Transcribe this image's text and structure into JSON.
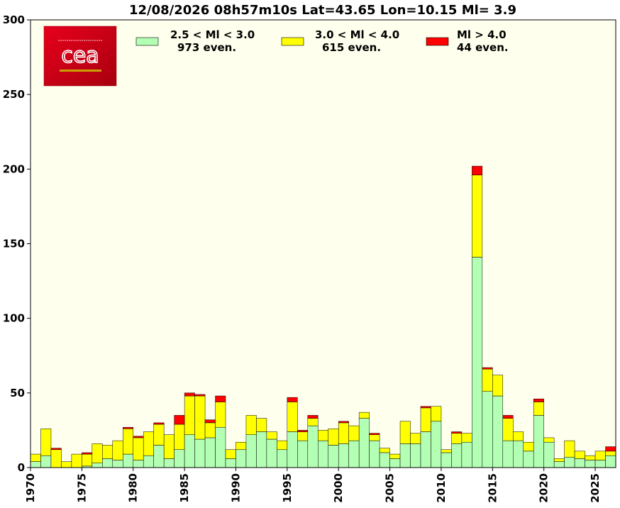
{
  "chart_data": {
    "type": "bar",
    "stacked": true,
    "title": "12/08/2026 08h57m10s Lat=43.65 Lon=10.15 Ml= 3.9",
    "xlabel": "",
    "ylabel": "",
    "ylim": [
      0,
      300
    ],
    "xlim": [
      1970,
      2027
    ],
    "yticks": [
      0,
      50,
      100,
      150,
      200,
      250,
      300
    ],
    "xticks": [
      1970,
      1975,
      1980,
      1985,
      1990,
      1995,
      2000,
      2005,
      2010,
      2015,
      2020,
      2025
    ],
    "x": [
      1970,
      1971,
      1972,
      1973,
      1974,
      1975,
      1976,
      1977,
      1978,
      1979,
      1980,
      1981,
      1982,
      1983,
      1984,
      1985,
      1986,
      1987,
      1988,
      1989,
      1990,
      1991,
      1992,
      1993,
      1994,
      1995,
      1996,
      1997,
      1998,
      1999,
      2000,
      2001,
      2002,
      2003,
      2004,
      2005,
      2006,
      2007,
      2008,
      2009,
      2010,
      2011,
      2012,
      2013,
      2014,
      2015,
      2016,
      2017,
      2018,
      2019,
      2020,
      2021,
      2022,
      2023,
      2024,
      2025,
      2026
    ],
    "series": [
      {
        "name": "2.5 < Ml <  3.0",
        "count_label": "973 even.",
        "color": "#b3ffb3",
        "values": [
          4,
          8,
          0,
          0,
          0,
          1,
          3,
          6,
          5,
          9,
          5,
          8,
          15,
          6,
          12,
          22,
          19,
          20,
          27,
          6,
          12,
          22,
          24,
          19,
          12,
          24,
          18,
          28,
          18,
          15,
          16,
          18,
          33,
          18,
          10,
          6,
          16,
          16,
          24,
          31,
          10,
          16,
          17,
          141,
          51,
          48,
          18,
          18,
          11,
          35,
          17,
          4,
          7,
          6,
          5,
          5,
          8
        ]
      },
      {
        "name": "3.0 < Ml <  4.0",
        "count_label": "615 even.",
        "color": "#ffff00",
        "values": [
          5,
          18,
          12,
          4,
          9,
          8,
          13,
          9,
          13,
          17,
          15,
          16,
          14,
          16,
          17,
          26,
          29,
          10,
          17,
          6,
          5,
          13,
          9,
          5,
          6,
          20,
          6,
          5,
          7,
          11,
          14,
          10,
          4,
          4,
          3,
          3,
          15,
          7,
          16,
          10,
          2,
          7,
          6,
          55,
          15,
          14,
          15,
          6,
          6,
          9,
          3,
          2,
          11,
          5,
          3,
          6,
          3
        ]
      },
      {
        "name": "Ml >  4.0",
        "count_label": "44 even.",
        "color": "#ff0000",
        "values": [
          0,
          0,
          1,
          0,
          0,
          1,
          0,
          0,
          0,
          1,
          1,
          0,
          1,
          0,
          6,
          2,
          1,
          2,
          4,
          0,
          0,
          0,
          0,
          0,
          0,
          3,
          1,
          2,
          0,
          0,
          1,
          0,
          0,
          1,
          0,
          0,
          0,
          0,
          1,
          0,
          0,
          1,
          0,
          6,
          1,
          0,
          2,
          0,
          0,
          2,
          0,
          0,
          0,
          0,
          0,
          0,
          3
        ]
      }
    ],
    "plot_background": "#ffffee",
    "grid": false,
    "legend_position": "top",
    "logo_text": "cea"
  }
}
